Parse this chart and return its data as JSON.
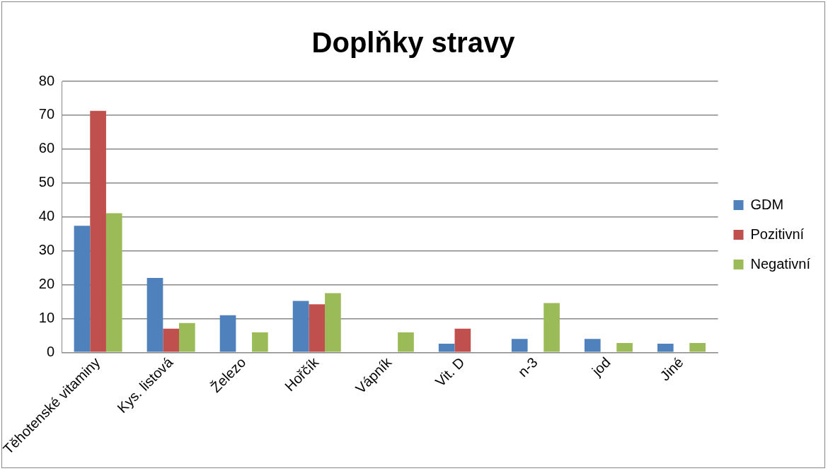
{
  "chart_data": {
    "type": "bar",
    "title": "Doplňky stravy",
    "categories": [
      "Těhotenské vitaminy",
      "Kys. listová",
      "Železo",
      "Hořčík",
      "Vápník",
      "Vit. D",
      "n-3",
      "jod",
      "Jiné"
    ],
    "series": [
      {
        "name": "GDM",
        "color": "#4f81bd",
        "values": [
          37.4,
          22.0,
          11.0,
          15.2,
          0,
          2.6,
          4.0,
          4.0,
          2.6
        ]
      },
      {
        "name": "Pozitivní",
        "color": "#c0504d",
        "values": [
          71.3,
          7.0,
          0,
          14.2,
          0,
          7.0,
          0,
          0,
          0
        ]
      },
      {
        "name": "Negativní",
        "color": "#9bbb59",
        "values": [
          41.1,
          8.7,
          5.9,
          17.5,
          5.9,
          0,
          14.6,
          2.8,
          2.8
        ]
      }
    ],
    "ylim": [
      0,
      80
    ],
    "yticks": [
      0,
      10,
      20,
      30,
      40,
      50,
      60,
      70,
      80
    ],
    "grid": "y",
    "legend": "right"
  }
}
